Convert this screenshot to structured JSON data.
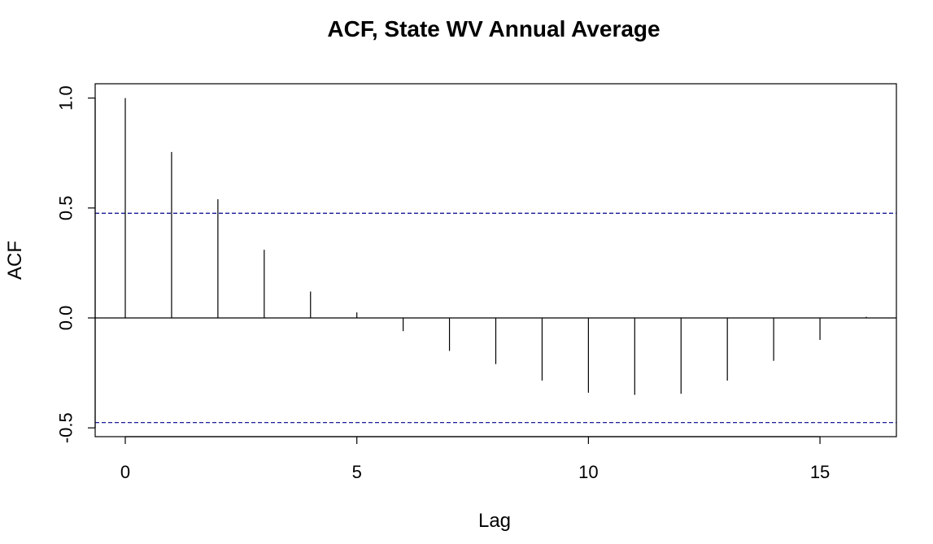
{
  "chart_data": {
    "type": "bar",
    "title": "ACF, State WV Annual Average",
    "xlabel": "Lag",
    "ylabel": "ACF",
    "x": [
      0,
      1,
      2,
      3,
      4,
      5,
      6,
      7,
      8,
      9,
      10,
      11,
      12,
      13,
      14,
      15,
      16
    ],
    "values": [
      1.0,
      0.755,
      0.54,
      0.31,
      0.12,
      0.025,
      -0.06,
      -0.15,
      -0.21,
      -0.285,
      -0.34,
      -0.35,
      -0.345,
      -0.285,
      -0.195,
      -0.1,
      0.005
    ],
    "confidence_bound": 0.476,
    "xlim": [
      -0.65,
      16.65
    ],
    "ylim": [
      -0.54,
      1.065
    ],
    "xticks": [
      0,
      5,
      10,
      15
    ],
    "xtick_labels": [
      "0",
      "5",
      "10",
      "15"
    ],
    "yticks": [
      -0.5,
      0,
      0.5,
      1
    ],
    "ytick_labels": [
      "-0.5",
      "0.0",
      "0.5",
      "1.0"
    ],
    "colors": {
      "bars": "#000000",
      "bounds": "#00008b",
      "zero_line": "#000000"
    },
    "grid": false,
    "legend": "none"
  }
}
